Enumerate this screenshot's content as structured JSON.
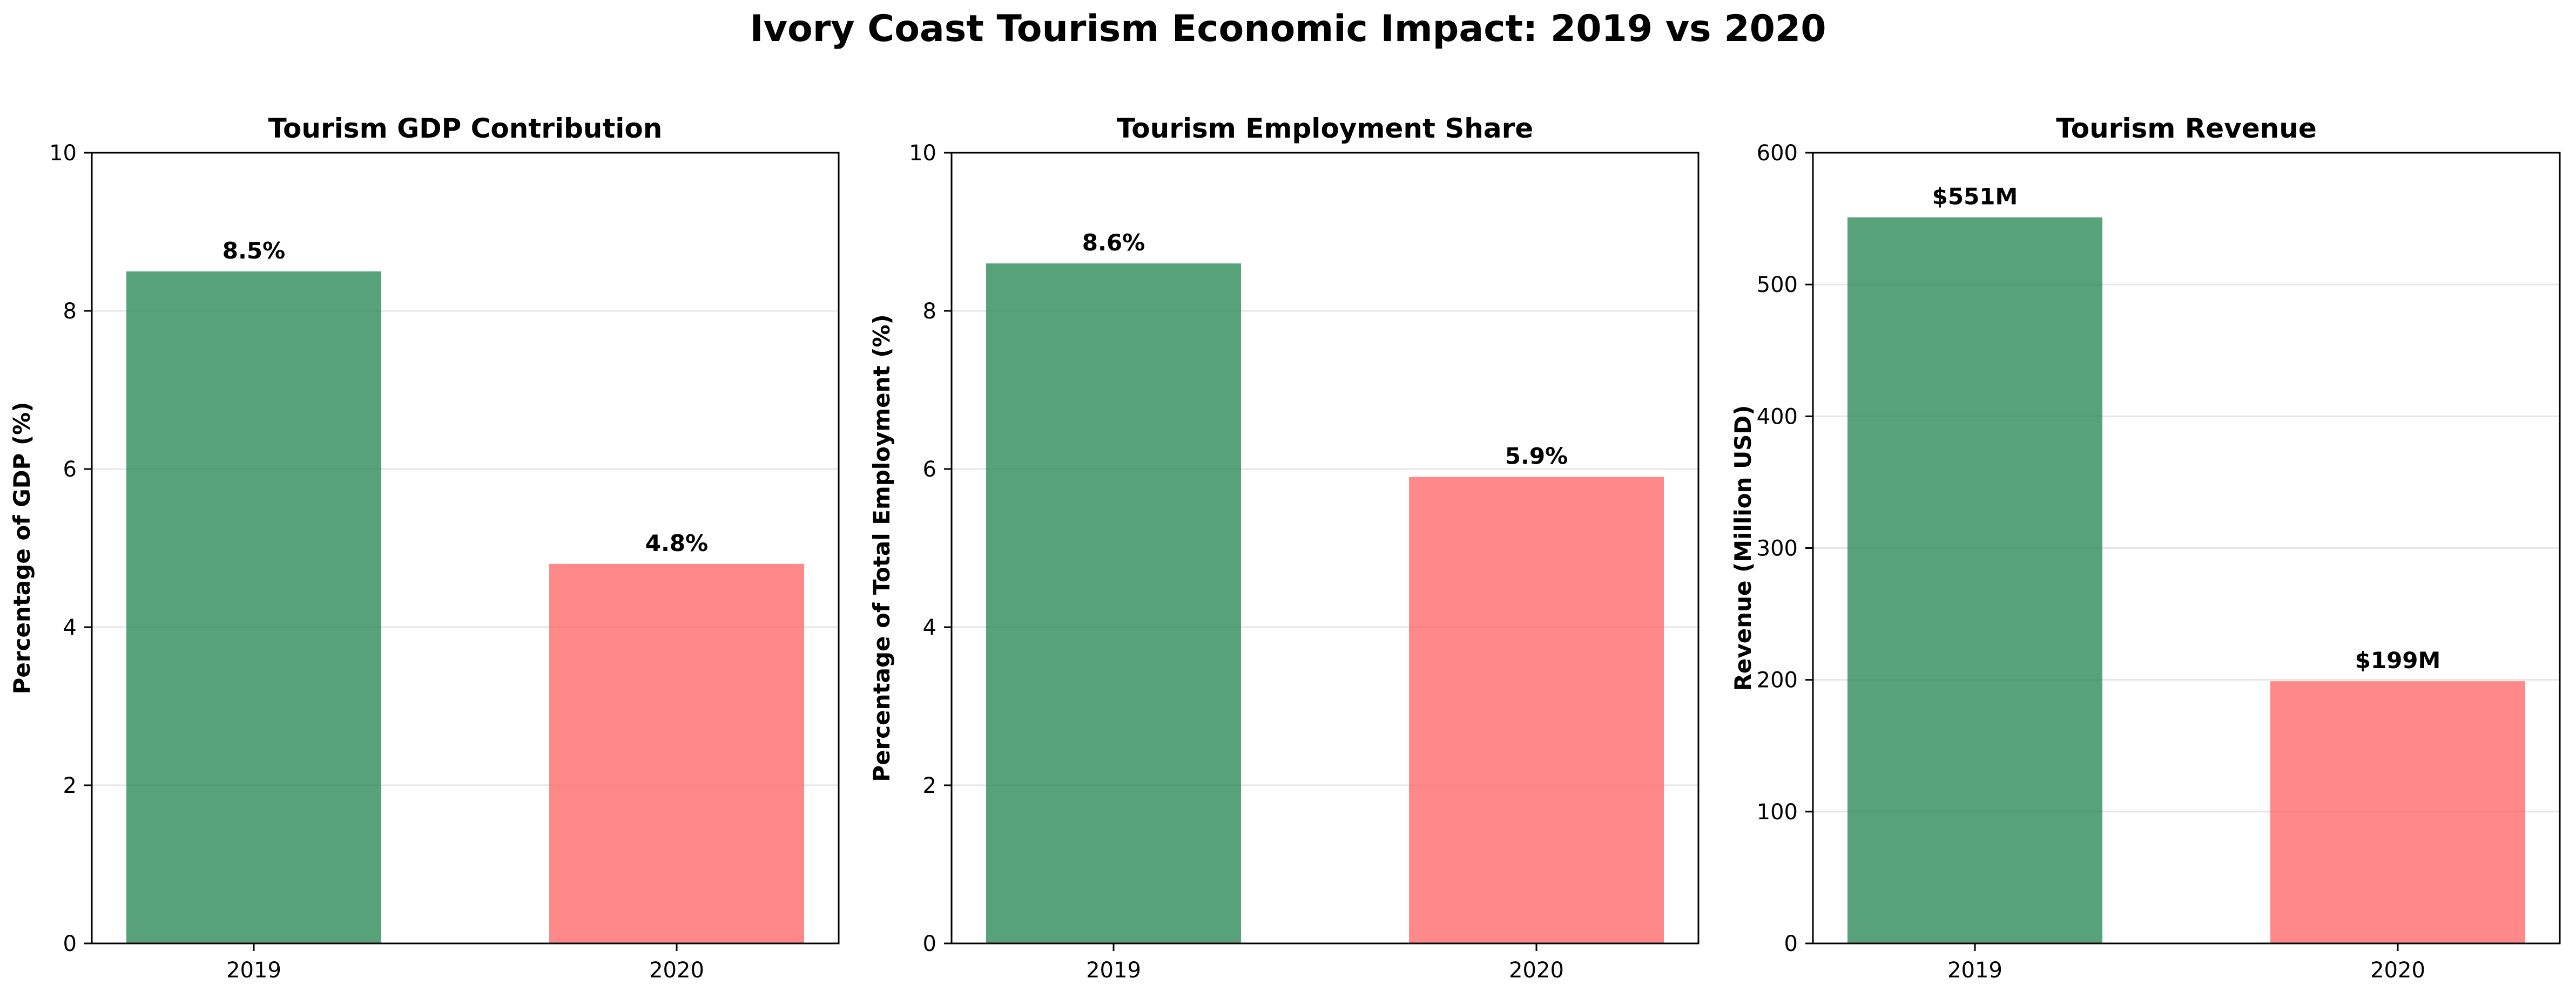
{
  "figure": {
    "title": "Ivory Coast Tourism Economic Impact: 2019 vs 2020"
  },
  "colors": {
    "y2019": "#2e8b57",
    "y2020": "#ff6b6b"
  },
  "chart_data": [
    {
      "type": "bar",
      "title": "Tourism GDP Contribution",
      "xlabel": "",
      "ylabel": "Percentage of GDP (%)",
      "categories": [
        "2019",
        "2020"
      ],
      "values": [
        8.5,
        4.8
      ],
      "data_labels": [
        "8.5%",
        "4.8%"
      ],
      "ylim": [
        0,
        10
      ],
      "yticks": [
        0,
        2,
        4,
        6,
        8,
        10
      ],
      "grid": "y"
    },
    {
      "type": "bar",
      "title": "Tourism Employment Share",
      "xlabel": "",
      "ylabel": "Percentage of Total Employment (%)",
      "categories": [
        "2019",
        "2020"
      ],
      "values": [
        8.6,
        5.9
      ],
      "data_labels": [
        "8.6%",
        "5.9%"
      ],
      "ylim": [
        0,
        10
      ],
      "yticks": [
        0,
        2,
        4,
        6,
        8,
        10
      ],
      "grid": "y"
    },
    {
      "type": "bar",
      "title": "Tourism Revenue",
      "xlabel": "",
      "ylabel": "Revenue (Million USD)",
      "categories": [
        "2019",
        "2020"
      ],
      "values": [
        551,
        199
      ],
      "data_labels": [
        "$551M",
        "$199M"
      ],
      "ylim": [
        0,
        600
      ],
      "yticks": [
        0,
        100,
        200,
        300,
        400,
        500,
        600
      ],
      "grid": "y"
    }
  ]
}
